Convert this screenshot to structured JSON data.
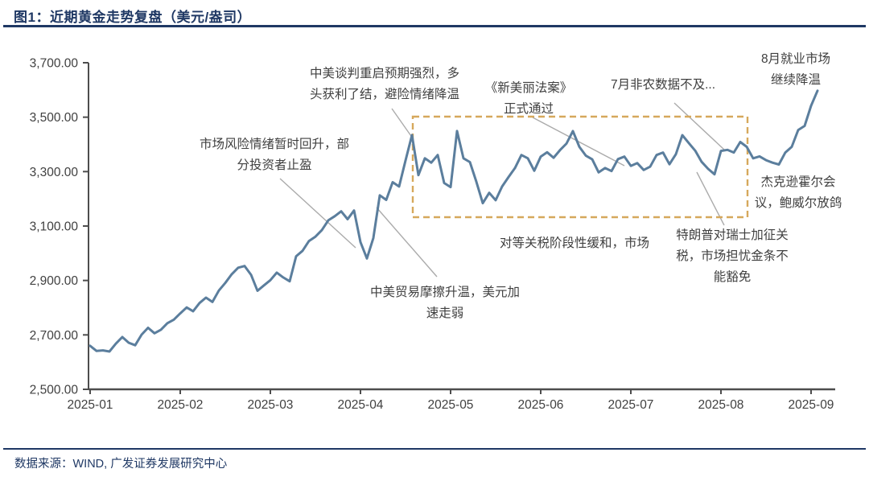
{
  "figure": {
    "title": "图1：近期黄金走势复盘（美元/盎司）",
    "source": "数据来源：WIND, 广发证券发展研究中心"
  },
  "chart_data": {
    "type": "line",
    "title": "近期黄金走势复盘（美元/盎司）",
    "unit": "美元/盎司",
    "x_tick_labels": [
      "2025-01",
      "2025-02",
      "2025-03",
      "2025-04",
      "2025-05",
      "2025-06",
      "2025-07",
      "2025-08",
      "2025-09"
    ],
    "y_tick_labels": [
      "3,700.00",
      "3,500.00",
      "3,300.00",
      "3,100.00",
      "2,900.00",
      "2,700.00",
      "2,500.00"
    ],
    "ylim": [
      2500,
      3700
    ],
    "grid": false,
    "legend": "none",
    "line_color": "#5B7E9D",
    "axis_color": "#4D4D4D",
    "values_per_month": 14,
    "values": [
      2660,
      2641,
      2643,
      2639,
      2668,
      2692,
      2671,
      2662,
      2701,
      2726,
      2706,
      2719,
      2743,
      2756,
      2779,
      2801,
      2787,
      2817,
      2837,
      2821,
      2863,
      2891,
      2923,
      2947,
      2953,
      2921,
      2862,
      2882,
      2901,
      2929,
      2911,
      2897,
      2989,
      3009,
      3045,
      3061,
      3085,
      3121,
      3136,
      3154,
      3125,
      3157,
      3041,
      2981,
      3056,
      3213,
      3196,
      3261,
      3245,
      3341,
      3434,
      3287,
      3349,
      3333,
      3361,
      3258,
      3243,
      3449,
      3349,
      3335,
      3263,
      3184,
      3222,
      3195,
      3245,
      3280,
      3313,
      3361,
      3349,
      3303,
      3355,
      3371,
      3351,
      3379,
      3403,
      3449,
      3391,
      3359,
      3345,
      3297,
      3313,
      3302,
      3346,
      3355,
      3321,
      3331,
      3306,
      3318,
      3361,
      3370,
      3327,
      3364,
      3434,
      3405,
      3377,
      3336,
      3310,
      3290,
      3376,
      3380,
      3370,
      3409,
      3391,
      3349,
      3356,
      3342,
      3333,
      3326,
      3370,
      3391,
      3453,
      3468,
      3542,
      3597
    ],
    "highlight_box": {
      "x_start": "2025-04中旬",
      "x_end": "2025-08中旬",
      "y_low": 3130,
      "y_high": 3490,
      "style": "dashed",
      "color": "#D6A85C"
    },
    "annotations": [
      {
        "id": "risk-sentiment",
        "lines": [
          "市场风险情绪暂时回升，部",
          "分投资者止盈"
        ]
      },
      {
        "id": "us-china-talks",
        "lines": [
          "中美谈判重启预期强烈，多",
          "头获利了结，避险情绪降温"
        ]
      },
      {
        "id": "trade-friction",
        "lines": [
          "中美贸易摩擦升温，美元加",
          "速走弱"
        ]
      },
      {
        "id": "new-beautiful-bill",
        "lines": [
          "《新美丽法案》",
          "正式通过"
        ]
      },
      {
        "id": "july-nonfarm",
        "lines": [
          "7月非农数据不及..."
        ]
      },
      {
        "id": "august-jobs",
        "lines": [
          "8月就业市场",
          "继续降温"
        ]
      },
      {
        "id": "jackson-hole",
        "lines": [
          "杰克逊霍尔会",
          "议，鲍威尔放鸽"
        ]
      },
      {
        "id": "trump-swiss-tariff",
        "lines": [
          "特朗普对瑞士加征关",
          "税，市场担忧金条不",
          "能豁免"
        ]
      },
      {
        "id": "tariff-easing",
        "lines": [
          "对等关税阶段性缓和，市场"
        ]
      }
    ]
  }
}
